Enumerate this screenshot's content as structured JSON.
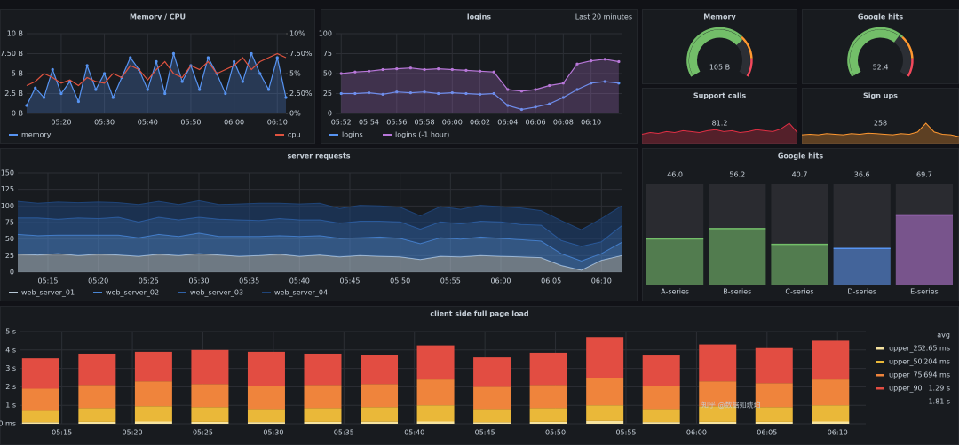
{
  "panels": [
    {
      "type": "line",
      "title": "Memory / CPU",
      "xlim": [
        0,
        60
      ],
      "xticks": [
        {
          "value": 8,
          "label": "05:20"
        },
        {
          "value": 18,
          "label": "05:30"
        },
        {
          "value": 28,
          "label": "05:40"
        },
        {
          "value": 38,
          "label": "05:50"
        },
        {
          "value": 48,
          "label": "06:00"
        },
        {
          "value": 58,
          "label": "06:10"
        }
      ],
      "x": [
        0,
        2,
        4,
        6,
        8,
        10,
        12,
        14,
        16,
        18,
        20,
        22,
        24,
        26,
        28,
        30,
        32,
        34,
        36,
        38,
        40,
        42,
        44,
        46,
        48,
        50,
        52,
        54,
        56,
        58,
        60
      ],
      "ylim": [
        0,
        10
      ],
      "yticks": [
        {
          "value": 0,
          "label": "0 B"
        },
        {
          "value": 2.5,
          "label": "2.5 B"
        },
        {
          "value": 5,
          "label": "5 B"
        },
        {
          "value": 7.5,
          "label": "7.50 B"
        },
        {
          "value": 10,
          "label": "10 B"
        }
      ],
      "y2lim": [
        0,
        10
      ],
      "y2ticks": [
        {
          "value": 0,
          "label": "0%"
        },
        {
          "value": 2.5,
          "label": "2.50%"
        },
        {
          "value": 5,
          "label": "5%"
        },
        {
          "value": 7.5,
          "label": "7.50%"
        },
        {
          "value": 10,
          "label": "10%"
        }
      ],
      "grid": true,
      "series": [
        {
          "name": "memory",
          "color": "#5794f2",
          "fill": true,
          "points": true,
          "values": [
            1,
            3.2,
            2,
            5.5,
            2.5,
            4,
            1.5,
            6,
            3,
            5,
            2,
            4.5,
            7,
            5.5,
            3,
            6.5,
            2.5,
            7.5,
            4,
            6,
            3,
            7,
            5,
            2.5,
            6.5,
            4,
            7.5,
            5,
            3,
            7,
            2
          ]
        },
        {
          "name": "cpu",
          "color": "#e0533f",
          "axis": "y2",
          "values": [
            3.5,
            4,
            5,
            4.5,
            3.8,
            4.2,
            3.5,
            4.5,
            4,
            3.8,
            5,
            4.5,
            6,
            5.5,
            4.2,
            5.5,
            6.5,
            5,
            4.5,
            6,
            5.5,
            6.5,
            5,
            5.5,
            6,
            7,
            5.5,
            6.5,
            7,
            7.5,
            7
          ]
        }
      ]
    },
    {
      "type": "line",
      "title": "logins",
      "annotation": "Last 20 minutes",
      "xlim": [
        -0.4,
        20.2
      ],
      "xticks": [
        {
          "value": 0,
          "label": "05:52"
        },
        {
          "value": 2,
          "label": "05:54"
        },
        {
          "value": 4,
          "label": "05:56"
        },
        {
          "value": 6,
          "label": "05:58"
        },
        {
          "value": 8,
          "label": "06:00"
        },
        {
          "value": 10,
          "label": "06:02"
        },
        {
          "value": 12,
          "label": "06:04"
        },
        {
          "value": 14,
          "label": "06:06"
        },
        {
          "value": 16,
          "label": "06:08"
        },
        {
          "value": 18,
          "label": "06:10"
        }
      ],
      "x": [
        0,
        1,
        2,
        3,
        4,
        5,
        6,
        7,
        8,
        9,
        10,
        11,
        12,
        13,
        14,
        15,
        16,
        17,
        18,
        19,
        20
      ],
      "ylim": [
        0,
        100
      ],
      "yticks": [
        0,
        25,
        50,
        75,
        100
      ],
      "grid": true,
      "series": [
        {
          "name": "logins",
          "color": "#5794f2",
          "points": true,
          "values": [
            25,
            25,
            26,
            24,
            27,
            26,
            27,
            25,
            26,
            25,
            24,
            25,
            10,
            5,
            8,
            12,
            20,
            30,
            38,
            40,
            38
          ]
        },
        {
          "name": "logins (-1 hour)",
          "color": "#b877d9",
          "fill": true,
          "points": true,
          "values": [
            50,
            52,
            53,
            55,
            56,
            57,
            55,
            56,
            55,
            54,
            53,
            52,
            30,
            28,
            30,
            35,
            38,
            62,
            66,
            68,
            65
          ]
        }
      ]
    },
    {
      "type": "gauge",
      "title": "Memory",
      "value": 105,
      "value_label": "105 B",
      "lim": [
        0,
        150
      ],
      "color": "#73bf69"
    },
    {
      "type": "gauge",
      "title": "Google hits",
      "value": 52.4,
      "value_label": "52.4",
      "lim": [
        0,
        80
      ],
      "color": "#73bf69"
    },
    {
      "type": "stat",
      "title": "Support calls",
      "value": 81.2,
      "value_label": "81.2",
      "color": "#e02f44",
      "values": [
        10,
        12,
        11,
        13,
        12,
        14,
        13,
        12,
        14,
        15,
        13,
        14,
        12,
        13,
        15,
        14,
        13,
        16,
        22,
        12
      ]
    },
    {
      "type": "stat",
      "title": "Sign ups",
      "value": 258,
      "color": "#ff9830",
      "values": [
        15,
        16,
        15,
        17,
        16,
        15,
        17,
        16,
        18,
        17,
        16,
        15,
        17,
        16,
        20,
        35,
        20,
        16,
        15,
        12
      ]
    },
    {
      "type": "area",
      "title": "server requests",
      "xlim": [
        0,
        60
      ],
      "xticks": [
        {
          "value": 3,
          "label": "05:15"
        },
        {
          "value": 8,
          "label": "05:20"
        },
        {
          "value": 13,
          "label": "05:25"
        },
        {
          "value": 18,
          "label": "05:30"
        },
        {
          "value": 23,
          "label": "05:35"
        },
        {
          "value": 28,
          "label": "05:40"
        },
        {
          "value": 33,
          "label": "05:45"
        },
        {
          "value": 38,
          "label": "05:50"
        },
        {
          "value": 43,
          "label": "05:55"
        },
        {
          "value": 48,
          "label": "06:00"
        },
        {
          "value": 53,
          "label": "06:05"
        },
        {
          "value": 58,
          "label": "06:10"
        }
      ],
      "x": [
        0,
        2,
        4,
        6,
        8,
        10,
        12,
        14,
        16,
        18,
        20,
        22,
        24,
        26,
        28,
        30,
        32,
        34,
        36,
        38,
        40,
        42,
        44,
        46,
        48,
        50,
        52,
        54,
        56,
        58,
        60
      ],
      "ylim": [
        0,
        150
      ],
      "yticks": [
        0,
        25,
        50,
        75,
        100,
        125,
        150
      ],
      "grid": true,
      "stacked": true,
      "series": [
        {
          "name": "web_server_01",
          "color": "#b7c7d6",
          "values": [
            27,
            26,
            28,
            25,
            27,
            26,
            24,
            27,
            25,
            28,
            26,
            24,
            25,
            27,
            24,
            26,
            23,
            25,
            24,
            23,
            19,
            24,
            23,
            25,
            24,
            23,
            22,
            10,
            3,
            18,
            25
          ]
        },
        {
          "name": "web_server_02",
          "color": "#4a86d4",
          "values": [
            30,
            29,
            28,
            31,
            29,
            30,
            28,
            30,
            29,
            31,
            28,
            30,
            29,
            28,
            30,
            29,
            28,
            27,
            29,
            28,
            24,
            28,
            27,
            28,
            27,
            26,
            25,
            18,
            14,
            10,
            20
          ]
        },
        {
          "name": "web_server_03",
          "color": "#2f62a8",
          "values": [
            25,
            27,
            24,
            26,
            25,
            27,
            24,
            26,
            25,
            24,
            26,
            25,
            24,
            26,
            25,
            24,
            23,
            25,
            24,
            25,
            22,
            24,
            23,
            24,
            25,
            23,
            24,
            20,
            22,
            18,
            25
          ]
        },
        {
          "name": "web_server_04",
          "color": "#1f4478",
          "values": [
            25,
            22,
            26,
            23,
            25,
            22,
            26,
            24,
            23,
            25,
            22,
            24,
            26,
            23,
            24,
            25,
            22,
            24,
            23,
            22,
            20,
            23,
            22,
            24,
            23,
            25,
            22,
            30,
            25,
            35,
            30
          ]
        }
      ]
    },
    {
      "type": "bargauge",
      "title": "Google hits",
      "categories": [
        "A-series",
        "B-series",
        "C-series",
        "D-series",
        "E-series"
      ],
      "values": [
        46,
        56.2,
        40.7,
        36.6,
        69.7
      ],
      "value_labels": [
        "46.0",
        "56.2",
        "40.7",
        "36.6",
        "69.7"
      ],
      "colors": [
        "#73bf69",
        "#73bf69",
        "#73bf69",
        "#5794f2",
        "#b877d9"
      ],
      "lim": [
        0,
        100
      ]
    },
    {
      "type": "bar",
      "title": "client side full page load",
      "xlim": [
        0,
        60
      ],
      "stacked": true,
      "x": [
        1.5,
        5.5,
        9.5,
        13.5,
        17.5,
        21.5,
        25.5,
        29.5,
        33.5,
        37.5,
        41.5,
        45.5,
        49.5,
        53.5,
        57.5
      ],
      "xticks": [
        {
          "value": 3,
          "label": "05:15"
        },
        {
          "value": 8,
          "label": "05:20"
        },
        {
          "value": 13,
          "label": "05:25"
        },
        {
          "value": 18,
          "label": "05:30"
        },
        {
          "value": 23,
          "label": "05:35"
        },
        {
          "value": 28,
          "label": "05:40"
        },
        {
          "value": 33,
          "label": "05:45"
        },
        {
          "value": 38,
          "label": "05:50"
        },
        {
          "value": 43,
          "label": "05:55"
        },
        {
          "value": 48,
          "label": "06:00"
        },
        {
          "value": 53,
          "label": "06:05"
        },
        {
          "value": 58,
          "label": "06:10"
        }
      ],
      "ylim": [
        0,
        5
      ],
      "yticks": [
        {
          "value": 0,
          "label": "0 ms"
        },
        {
          "value": 1,
          "label": "1 s"
        },
        {
          "value": 2,
          "label": "2 s"
        },
        {
          "value": 3,
          "label": "3 s"
        },
        {
          "value": 4,
          "label": "4 s"
        },
        {
          "value": 5,
          "label": "5 s"
        }
      ],
      "grid": true,
      "legend_header": "avg",
      "series": [
        {
          "name": "upper_25",
          "color": "#f6e3a0",
          "avg": "2.65 ms",
          "values": [
            0.08,
            0.1,
            0.12,
            0.1,
            0.09,
            0.1,
            0.11,
            0.12,
            0.08,
            0.1,
            0.15,
            0.09,
            0.1,
            0.1,
            0.12
          ]
        },
        {
          "name": "upper_50",
          "color": "#eab839",
          "avg": "204 ms",
          "values": [
            0.62,
            0.75,
            0.83,
            0.8,
            0.71,
            0.75,
            0.79,
            0.88,
            0.72,
            0.75,
            0.85,
            0.71,
            0.85,
            0.8,
            0.88
          ]
        },
        {
          "name": "upper_75",
          "color": "#ef843c",
          "avg": "694 ms",
          "values": [
            1.2,
            1.25,
            1.35,
            1.25,
            1.25,
            1.25,
            1.25,
            1.4,
            1.2,
            1.25,
            1.5,
            1.25,
            1.35,
            1.3,
            1.4
          ]
        },
        {
          "name": "upper_90",
          "color": "#e24d42",
          "avg": "1.29 s",
          "values": [
            1.65,
            1.7,
            1.6,
            1.85,
            1.85,
            1.7,
            1.6,
            1.85,
            1.6,
            1.75,
            2.2,
            1.65,
            2,
            1.9,
            2.1
          ]
        }
      ],
      "legend_overflow": "1.81 s"
    }
  ],
  "watermark": "知乎 @数据如琥珀"
}
